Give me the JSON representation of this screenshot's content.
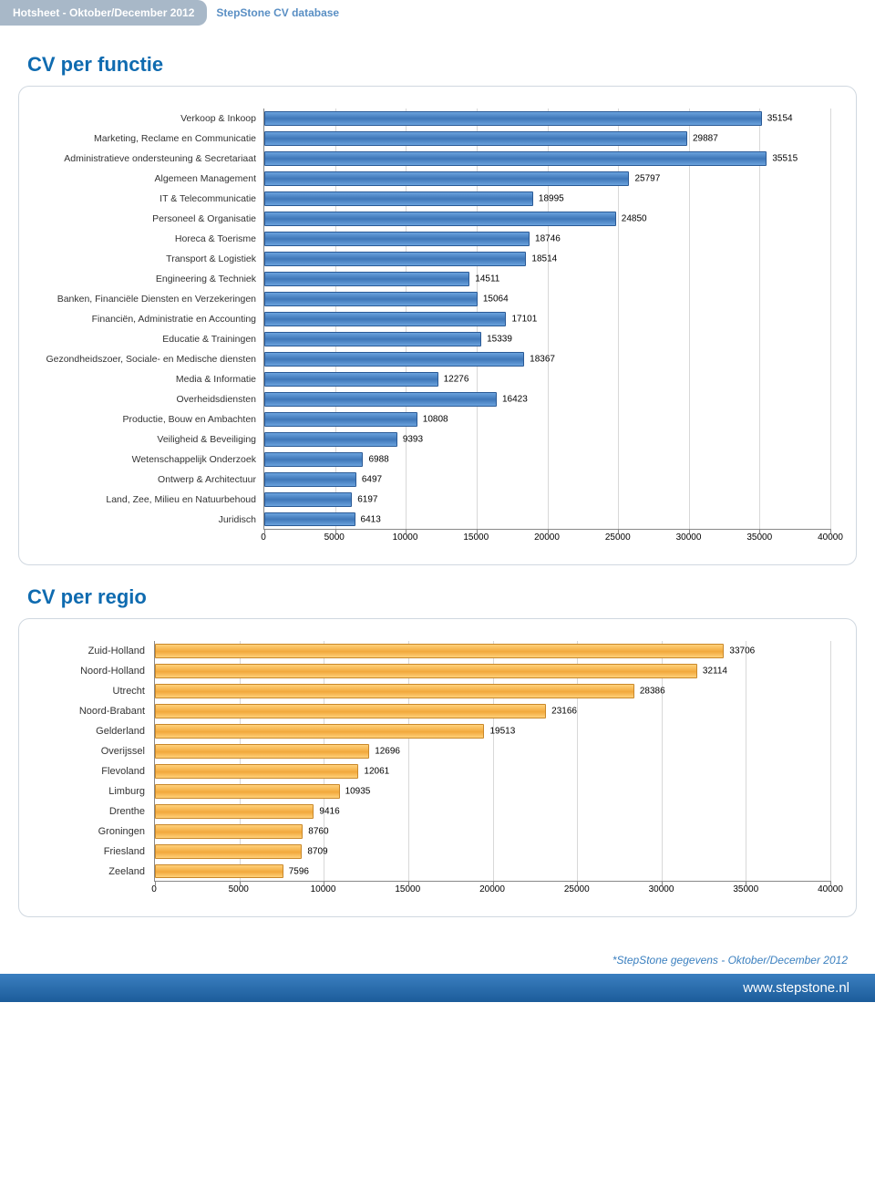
{
  "header": {
    "tab1": "Hotsheet - Oktober/December 2012",
    "tab2": "StepStone CV database"
  },
  "functie": {
    "title": "CV per functie",
    "type": "bar",
    "xlim": [
      0,
      40000
    ],
    "xtick_step": 5000,
    "xticks": [
      0,
      5000,
      10000,
      15000,
      20000,
      25000,
      30000,
      35000,
      40000
    ],
    "bar_color": "#4e86c6",
    "bar_border": "#2a5a96",
    "grid_color": "#d8d8d8",
    "label_fontsize": 10.5,
    "value_fontsize": 10,
    "rows": [
      {
        "label": "Verkoop & Inkoop",
        "value": 35154
      },
      {
        "label": "Marketing, Reclame en Communicatie",
        "value": 29887
      },
      {
        "label": "Administratieve ondersteuning &  Secretariaat",
        "value": 35515
      },
      {
        "label": "Algemeen Management",
        "value": 25797
      },
      {
        "label": "IT & Telecommunicatie",
        "value": 18995
      },
      {
        "label": "Personeel &  Organisatie",
        "value": 24850
      },
      {
        "label": "Horeca & Toerisme",
        "value": 18746
      },
      {
        "label": "Transport & Logistiek",
        "value": 18514
      },
      {
        "label": "Engineering & Techniek",
        "value": 14511
      },
      {
        "label": "Banken, Financiële Diensten en Verzekeringen",
        "value": 15064
      },
      {
        "label": "Financiën, Administratie en Accounting",
        "value": 17101
      },
      {
        "label": "Educatie & Trainingen",
        "value": 15339
      },
      {
        "label": "Gezondheidszoer, Sociale- en Medische diensten",
        "value": 18367
      },
      {
        "label": "Media &  Informatie",
        "value": 12276
      },
      {
        "label": "Overheidsdiensten",
        "value": 16423
      },
      {
        "label": "Productie, Bouw en Ambachten",
        "value": 10808
      },
      {
        "label": "Veiligheid & Beveiliging",
        "value": 9393
      },
      {
        "label": "Wetenschappelijk Onderzoek",
        "value": 6988
      },
      {
        "label": "Ontwerp & Architectuur",
        "value": 6497
      },
      {
        "label": "Land, Zee, Milieu en Natuurbehoud",
        "value": 6197
      },
      {
        "label": "Juridisch",
        "value": 6413
      }
    ]
  },
  "regio": {
    "title": "CV per regio",
    "type": "bar",
    "xlim": [
      0,
      40000
    ],
    "xtick_step": 5000,
    "xticks": [
      0,
      5000,
      10000,
      15000,
      20000,
      25000,
      30000,
      35000,
      40000
    ],
    "bar_color": "#f2a93c",
    "bar_border": "#c9882a",
    "grid_color": "#d8d8d8",
    "label_fontsize": 11,
    "value_fontsize": 10,
    "rows": [
      {
        "label": "Zuid-Holland",
        "value": 33706
      },
      {
        "label": "Noord-Holland",
        "value": 32114
      },
      {
        "label": "Utrecht",
        "value": 28386
      },
      {
        "label": "Noord-Brabant",
        "value": 23166
      },
      {
        "label": "Gelderland",
        "value": 19513
      },
      {
        "label": "Overijssel",
        "value": 12696
      },
      {
        "label": "Flevoland",
        "value": 12061
      },
      {
        "label": "Limburg",
        "value": 10935
      },
      {
        "label": "Drenthe",
        "value": 9416
      },
      {
        "label": "Groningen",
        "value": 8760
      },
      {
        "label": "Friesland",
        "value": 8709
      },
      {
        "label": "Zeeland",
        "value": 7596
      }
    ]
  },
  "footer": {
    "note": "*StepStone gegevens - Oktober/December 2012",
    "url": "www.stepstone.nl"
  }
}
